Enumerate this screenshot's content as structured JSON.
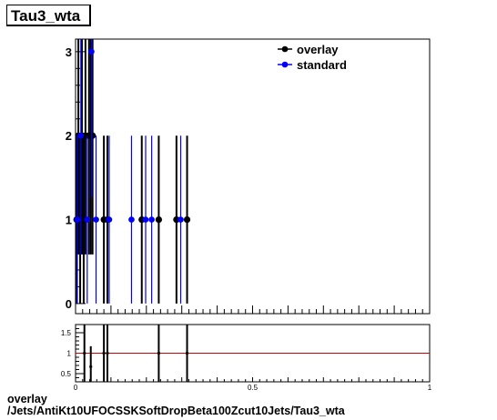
{
  "title": "Tau3_wta",
  "caption": {
    "line1": "overlay",
    "line2": "/Jets/AntiKt10UFOCSSKSoftDropBeta100Zcut10Jets/Tau3_wta"
  },
  "colors": {
    "overlay": "#000000",
    "standard": "#0000ff",
    "ratio_line": "#cc0000"
  },
  "chart_data": [
    {
      "type": "scatter",
      "title": "",
      "xlabel": "",
      "ylabel": "",
      "xlim": [
        0,
        1
      ],
      "ylim": [
        -0.12,
        3.15
      ],
      "yticks": [
        "0",
        "1",
        "2",
        "3"
      ],
      "legend": {
        "placement": "top-right",
        "entries": [
          "overlay",
          "standard"
        ]
      },
      "series": [
        {
          "name": "overlay",
          "color": "#000000",
          "points": [
            {
              "x": 0.003,
              "y": 1
            },
            {
              "x": 0.008,
              "y": 2
            },
            {
              "x": 0.013,
              "y": 1
            },
            {
              "x": 0.018,
              "y": 2
            },
            {
              "x": 0.023,
              "y": 1
            },
            {
              "x": 0.028,
              "y": 2
            },
            {
              "x": 0.038,
              "y": 2
            },
            {
              "x": 0.043,
              "y": 2
            },
            {
              "x": 0.048,
              "y": 2
            },
            {
              "x": 0.08,
              "y": 1
            },
            {
              "x": 0.09,
              "y": 1
            },
            {
              "x": 0.187,
              "y": 1
            },
            {
              "x": 0.235,
              "y": 1
            },
            {
              "x": 0.285,
              "y": 1
            },
            {
              "x": 0.315,
              "y": 1
            }
          ]
        },
        {
          "name": "standard",
          "color": "#0000ff",
          "points": [
            {
              "x": 0.005,
              "y": 1
            },
            {
              "x": 0.015,
              "y": 2
            },
            {
              "x": 0.033,
              "y": 1
            },
            {
              "x": 0.045,
              "y": 3
            },
            {
              "x": 0.058,
              "y": 1
            },
            {
              "x": 0.095,
              "y": 1
            },
            {
              "x": 0.158,
              "y": 1
            },
            {
              "x": 0.198,
              "y": 1
            },
            {
              "x": 0.215,
              "y": 1
            },
            {
              "x": 0.297,
              "y": 1
            }
          ]
        }
      ]
    },
    {
      "type": "scatter",
      "title": "",
      "xlabel": "Tau3_wta",
      "ylabel": "",
      "xlim": [
        0,
        1
      ],
      "ylim": [
        0.3,
        1.7
      ],
      "yticks": [
        "0.5",
        "1",
        "1.5"
      ],
      "xticks": [
        "0",
        "0.5",
        "1"
      ],
      "reference_line": 1,
      "series": [
        {
          "name": "",
          "color": "#000000",
          "points": [
            {
              "x": 0.025,
              "y": 1.0
            },
            {
              "x": 0.043,
              "y": 0.67
            },
            {
              "x": 0.08,
              "y": 1.0
            },
            {
              "x": 0.09,
              "y": 1.0
            },
            {
              "x": 0.235,
              "y": 1.0
            },
            {
              "x": 0.315,
              "y": 1.0
            }
          ]
        }
      ]
    }
  ]
}
